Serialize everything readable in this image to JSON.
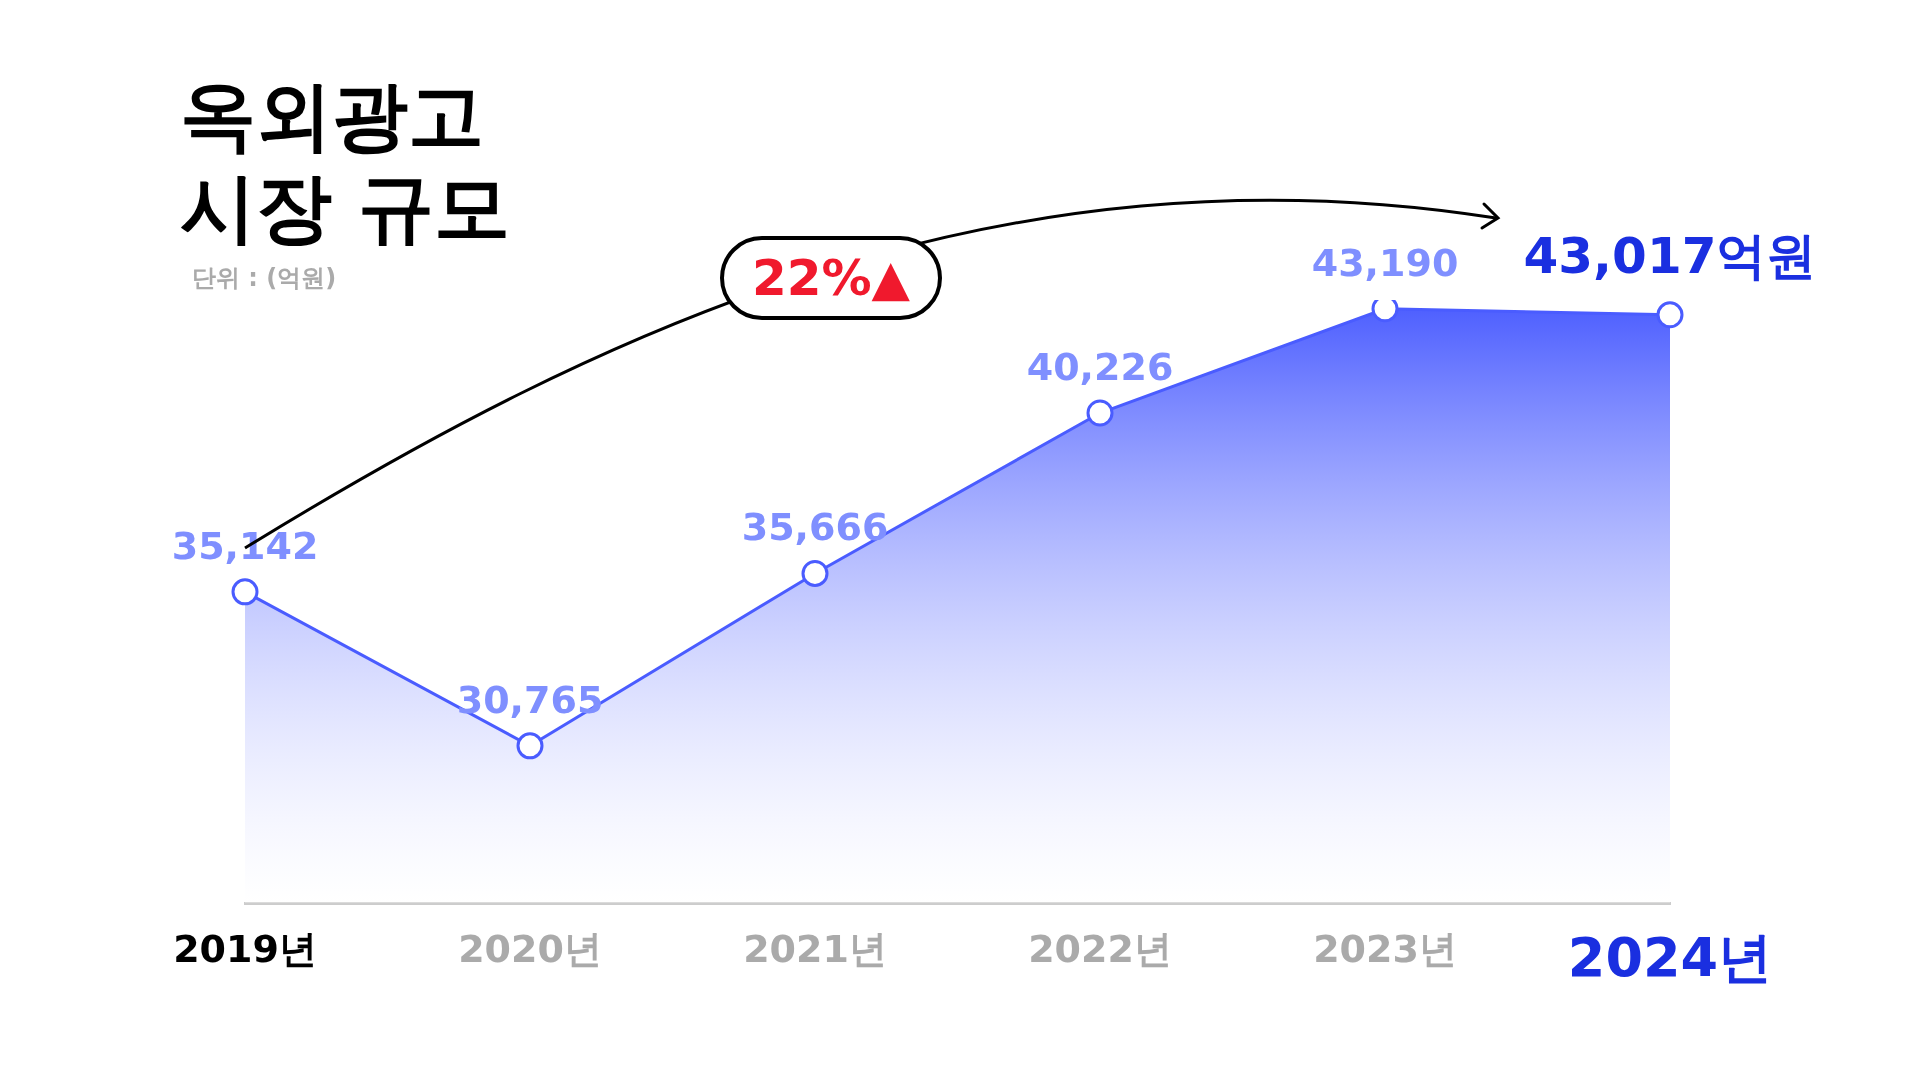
{
  "chart_data": {
    "type": "area",
    "title": "옥외광고\n시장 규모",
    "subtitle": "단위 : (억원)",
    "categories": [
      "2019년",
      "2020년",
      "2021년",
      "2022년",
      "2023년",
      "2024년"
    ],
    "series": [
      {
        "color": "#4a5cff",
        "values": [
          35142,
          30765,
          35666,
          40226,
          43190,
          43017
        ],
        "value_labels": [
          "35,142",
          "30,765",
          "35,666",
          "40,226",
          "43,190",
          "43,017억원"
        ]
      }
    ],
    "data_labels": true,
    "marker": "circle",
    "grid": false,
    "legend": false,
    "annotations": [
      "22%▲"
    ]
  }
}
